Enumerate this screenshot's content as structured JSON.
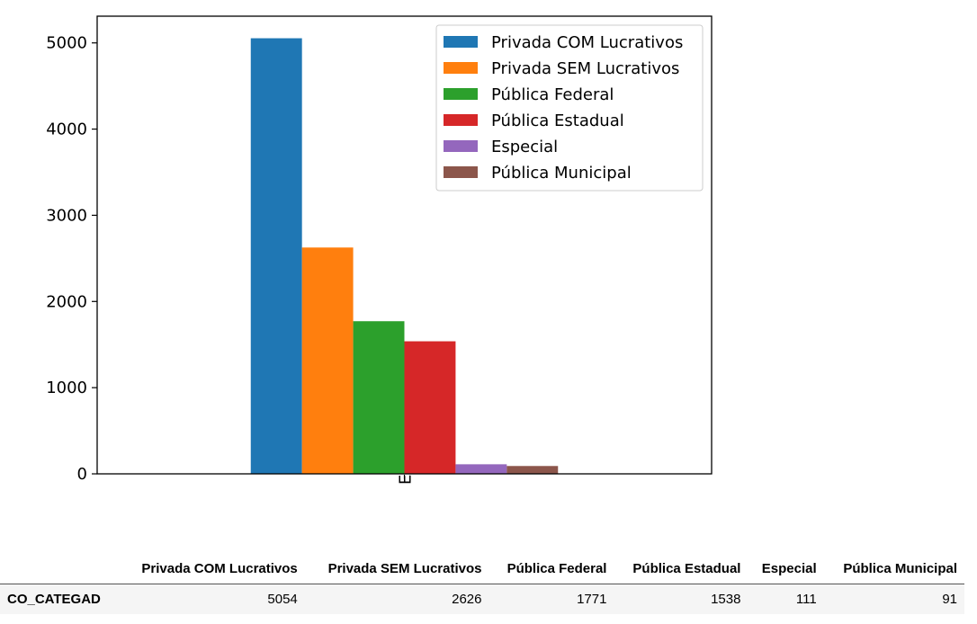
{
  "chart_data": {
    "type": "bar",
    "categories": [
      "CO_CATEGAD"
    ],
    "category_tick_visible": "EGAD",
    "series": [
      {
        "name": "Privada COM Lucrativos",
        "color": "#1f77b4",
        "values": [
          5054
        ]
      },
      {
        "name": "Privada SEM Lucrativos",
        "color": "#ff7f0e",
        "values": [
          2626
        ]
      },
      {
        "name": "Pública Federal",
        "color": "#2ca02c",
        "values": [
          1771
        ]
      },
      {
        "name": "Pública Estadual",
        "color": "#d62728",
        "values": [
          1538
        ]
      },
      {
        "name": "Especial",
        "color": "#9467bd",
        "values": [
          111
        ]
      },
      {
        "name": "Pública Municipal",
        "color": "#8c564b",
        "values": [
          91
        ]
      }
    ],
    "y_ticks": [
      0,
      1000,
      2000,
      3000,
      4000,
      5000
    ],
    "ylim": [
      0,
      5310
    ],
    "grid": false,
    "legend_position": "top-right",
    "xlabel": "",
    "ylabel": ""
  },
  "table": {
    "columns": [
      "Privada COM Lucrativos",
      "Privada SEM Lucrativos",
      "Pública Federal",
      "Pública Estadual",
      "Especial",
      "Pública Municipal"
    ],
    "rows": [
      {
        "label": "CO_CATEGAD",
        "values": [
          "5054",
          "2626",
          "1771",
          "1538",
          "111",
          "91"
        ]
      }
    ]
  }
}
